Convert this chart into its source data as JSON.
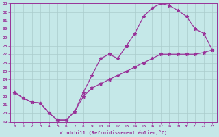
{
  "xlabel": "Windchill (Refroidissement éolien,°C)",
  "bg_color": "#c5e8e8",
  "line_color": "#993399",
  "grid_color": "#aacccc",
  "xlim": [
    -0.5,
    23.5
  ],
  "ylim": [
    19,
    33
  ],
  "xticks": [
    0,
    1,
    2,
    3,
    4,
    5,
    6,
    7,
    8,
    9,
    10,
    11,
    12,
    13,
    14,
    15,
    16,
    17,
    18,
    19,
    20,
    21,
    22,
    23
  ],
  "yticks": [
    19,
    20,
    21,
    22,
    23,
    24,
    25,
    26,
    27,
    28,
    29,
    30,
    31,
    32,
    33
  ],
  "line1_x": [
    0,
    1,
    2,
    3,
    4,
    5,
    6,
    7,
    8,
    9,
    10,
    11,
    12,
    13,
    14,
    15,
    16,
    17,
    18,
    19,
    20,
    21,
    22,
    23
  ],
  "line1_y": [
    22.5,
    21.8,
    21.3,
    21.2,
    20.0,
    19.2,
    19.2,
    20.2,
    22.5,
    24.5,
    26.5,
    27.0,
    26.5,
    28.0,
    29.5,
    31.5,
    32.5,
    33.0,
    32.8,
    32.2,
    31.5,
    30.0,
    29.5,
    27.5
  ],
  "line2_x": [
    0,
    1,
    2,
    3,
    4,
    5,
    6,
    7,
    8,
    9,
    10,
    11,
    12,
    13,
    14,
    15,
    16,
    17,
    18,
    19,
    20,
    21,
    22,
    23
  ],
  "line2_y": [
    22.5,
    21.8,
    21.3,
    21.2,
    20.0,
    19.2,
    19.2,
    20.2,
    22.0,
    23.0,
    23.5,
    24.0,
    24.5,
    25.0,
    25.5,
    26.0,
    26.5,
    27.0,
    27.0,
    27.0,
    27.0,
    27.0,
    27.2,
    27.5
  ]
}
